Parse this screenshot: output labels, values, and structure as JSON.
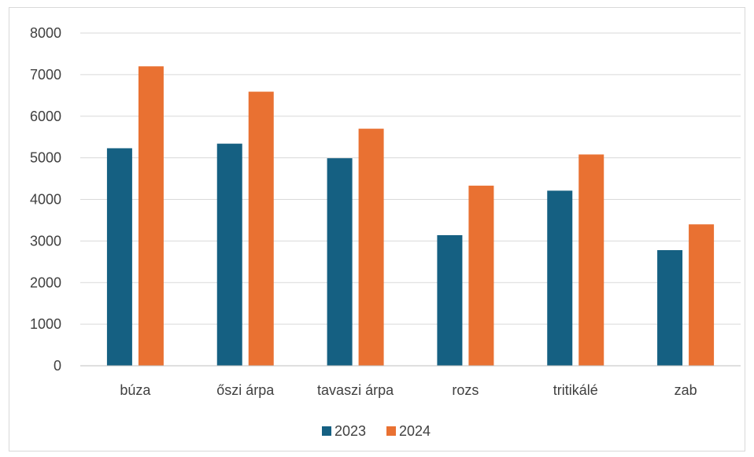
{
  "chart_data": {
    "type": "bar",
    "title": "",
    "xlabel": "",
    "ylabel": "",
    "categories": [
      "búza",
      "őszi árpa",
      "tavaszi árpa",
      "rozs",
      "tritikálé",
      "zab"
    ],
    "series": [
      {
        "name": "2023",
        "color": "#156082",
        "values": [
          5230,
          5340,
          4990,
          3140,
          4210,
          2780
        ]
      },
      {
        "name": "2024",
        "color": "#E97132",
        "values": [
          7200,
          6590,
          5700,
          4330,
          5080,
          3400
        ]
      }
    ],
    "ylim": [
      0,
      8000
    ],
    "yticks": [
      "0",
      "1000",
      "2000",
      "3000",
      "4000",
      "5000",
      "6000",
      "7000",
      "8000"
    ],
    "grid": true,
    "legend": "bottom-center"
  }
}
